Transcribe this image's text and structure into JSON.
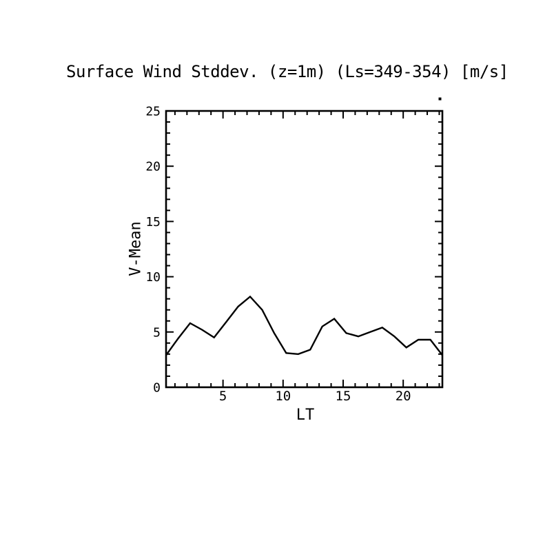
{
  "page": {
    "background": "#ffffff",
    "foreground": "#000000"
  },
  "chart_data": {
    "type": "line",
    "title": "Surface Wind Stddev. (z=1m) (Ls=349-354) [m/s]",
    "xlabel": "LT",
    "ylabel": "V-Mean",
    "x": [
      0,
      1,
      2,
      3,
      4,
      5,
      6,
      7,
      8,
      9,
      10,
      11,
      12,
      13,
      14,
      15,
      16,
      17,
      18,
      19,
      20,
      21,
      22,
      23
    ],
    "values": [
      2.9,
      4.4,
      5.8,
      5.2,
      4.5,
      5.9,
      7.3,
      8.2,
      7.0,
      4.9,
      3.1,
      3.0,
      3.4,
      5.5,
      6.2,
      4.9,
      4.6,
      5.0,
      5.4,
      4.6,
      3.6,
      4.3,
      4.3,
      2.9
    ],
    "xlim": [
      0.26,
      23.26
    ],
    "ylim": [
      0,
      25
    ],
    "xticks_major": [
      5,
      10,
      15,
      20
    ],
    "xtick_labels": [
      "5",
      "10",
      "15",
      "20"
    ],
    "yticks_major": [
      0,
      5,
      10,
      15,
      20,
      25
    ],
    "ytick_labels": [
      "0",
      "5",
      "10",
      "15",
      "20",
      "25"
    ],
    "xtick_minor_step": 1,
    "ytick_minor_step": 1,
    "line_color": "#000000",
    "grid": "off",
    "legend": "none"
  },
  "decorations": {
    "stray_dot": {
      "present": true,
      "description": "small dot just above top-right corner of plot frame"
    }
  }
}
